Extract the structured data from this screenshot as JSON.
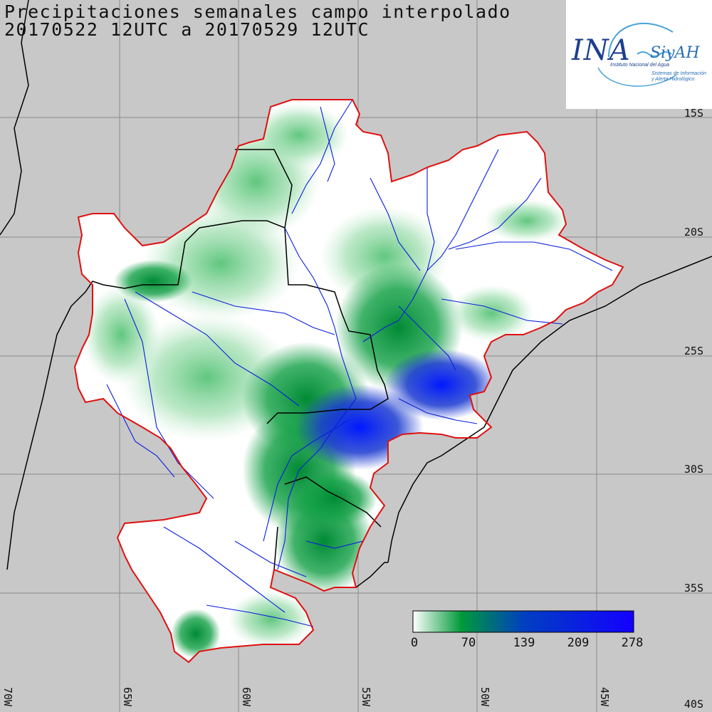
{
  "title": {
    "line1": "Precipitaciones semanales campo interpolado",
    "line2": "20170522 12UTC a 20170529 12UTC"
  },
  "logo": {
    "mark": "INA",
    "brand": "SiyAH",
    "subtitle": "Instituto Nacional del Agua",
    "tagline": "Sistemas de Información y Alerta Hidrológico"
  },
  "latitude_labels": [
    "15S",
    "20S",
    "25S",
    "30S",
    "35S",
    "40S"
  ],
  "longitude_labels": [
    "70W",
    "65W",
    "60W",
    "55W",
    "50W",
    "45W"
  ],
  "colorbar": {
    "tick_labels": [
      "0",
      "70",
      "139",
      "209",
      "278"
    ],
    "colors": [
      "#ffffff",
      "#009a3a",
      "#0020ff"
    ]
  },
  "colors": {
    "background": "#c8c8c8",
    "basin_outline": "#e01010",
    "rivers": "#0a1edc",
    "borders": "#000000"
  }
}
